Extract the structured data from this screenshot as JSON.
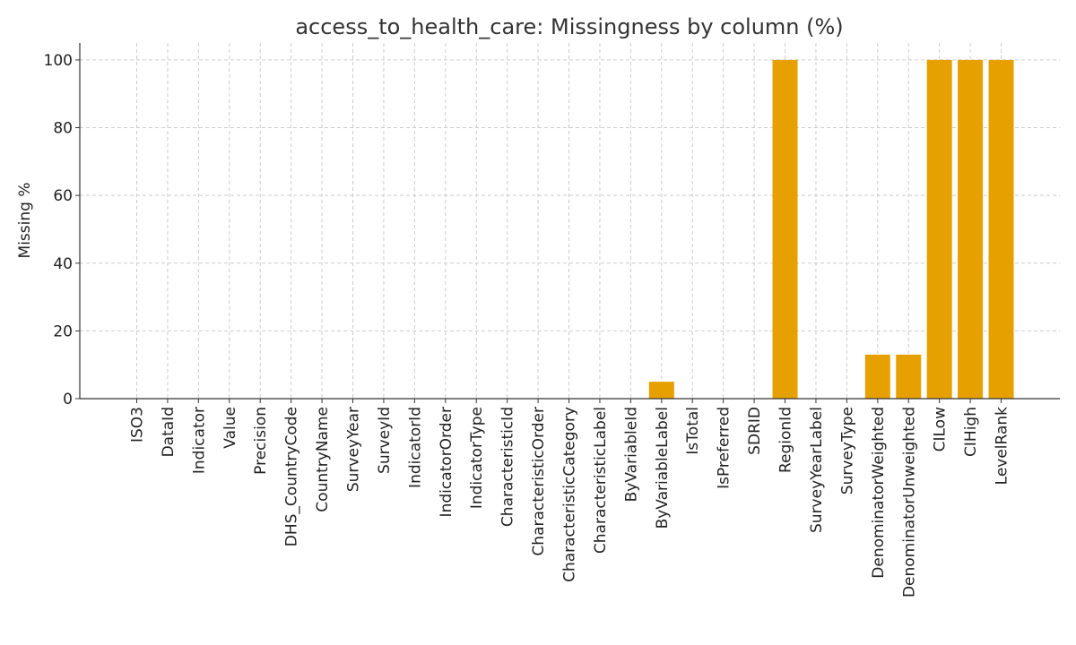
{
  "chart_data": {
    "type": "bar",
    "title": "access_to_health_care: Missingness by column (%)",
    "xlabel": "",
    "ylabel": "Missing %",
    "ylim": [
      0,
      105
    ],
    "yticks": [
      0,
      20,
      40,
      60,
      80,
      100
    ],
    "grid": true,
    "bar_color": "#E6A100",
    "categories": [
      "ISO3",
      "DataId",
      "Indicator",
      "Value",
      "Precision",
      "DHS_CountryCode",
      "CountryName",
      "SurveyYear",
      "SurveyId",
      "IndicatorId",
      "IndicatorOrder",
      "IndicatorType",
      "CharacteristicId",
      "CharacteristicOrder",
      "CharacteristicCategory",
      "CharacteristicLabel",
      "ByVariableId",
      "ByVariableLabel",
      "IsTotal",
      "IsPreferred",
      "SDRID",
      "RegionId",
      "SurveyYearLabel",
      "SurveyType",
      "DenominatorWeighted",
      "DenominatorUnweighted",
      "CILow",
      "CIHigh",
      "LevelRank"
    ],
    "values": [
      0,
      0,
      0,
      0,
      0,
      0,
      0,
      0,
      0,
      0,
      0,
      0,
      0,
      0,
      0,
      0,
      0,
      5,
      0,
      0,
      0,
      100,
      0,
      0,
      13,
      13,
      100,
      100,
      100
    ]
  }
}
